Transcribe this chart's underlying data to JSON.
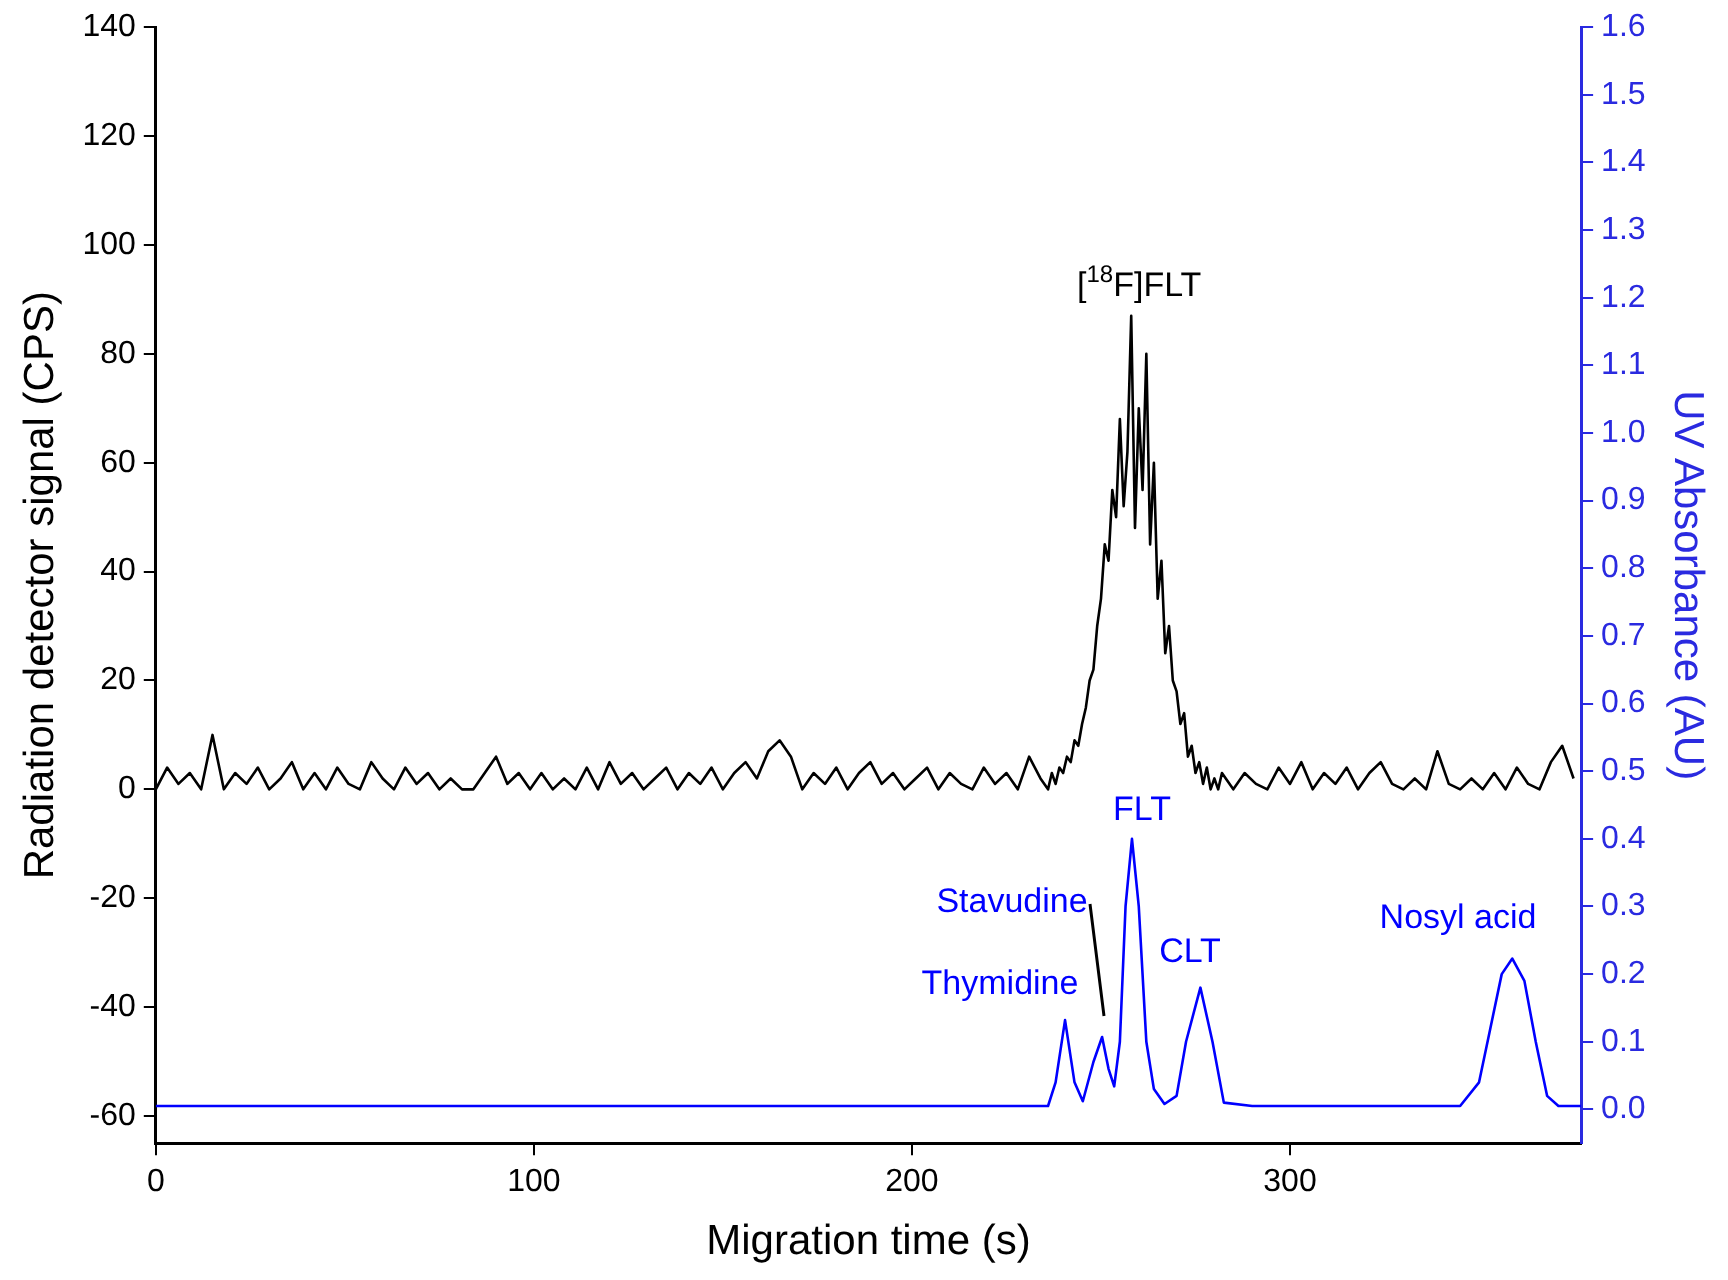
{
  "chart_data": {
    "type": "line",
    "xlabel": "Migration time (s)",
    "ylabel": "Radiation detector signal (CPS)",
    "y2label": "UV Absorbance (AU)",
    "xlim": [
      0,
      377
    ],
    "xticks": [
      0,
      100,
      200,
      300
    ],
    "ylim": [
      -65,
      140
    ],
    "yticks": [
      -60,
      -40,
      -20,
      0,
      20,
      40,
      60,
      80,
      100,
      120,
      140
    ],
    "y2lim": [
      -0.05,
      1.6
    ],
    "y2ticks": [
      {
        "value": 0,
        "label": "0.0"
      },
      0.1,
      0.2,
      0.3,
      0.4,
      0.5,
      0.6,
      0.7,
      0.8,
      0.9,
      {
        "value": 1,
        "label": "1.0"
      },
      1.1,
      1.2,
      1.3,
      1.4,
      1.5,
      1.6
    ],
    "grid": false,
    "legend": false,
    "marker": "none",
    "line_style": "solid",
    "series": [
      {
        "color": "#000000",
        "x": [
          0,
          3,
          6,
          9,
          12,
          15,
          18,
          21,
          24,
          27,
          30,
          33,
          36,
          39,
          42,
          45,
          48,
          51,
          54,
          57,
          60,
          63,
          66,
          69,
          72,
          75,
          78,
          81,
          84,
          87,
          90,
          93,
          96,
          99,
          102,
          105,
          108,
          111,
          114,
          117,
          120,
          123,
          126,
          129,
          132,
          135,
          138,
          141,
          144,
          147,
          150,
          153,
          156,
          159,
          162,
          165,
          168,
          171,
          174,
          177,
          180,
          183,
          186,
          189,
          192,
          195,
          198,
          201,
          204,
          207,
          210,
          213,
          216,
          219,
          222,
          225,
          228,
          231,
          234,
          236,
          237,
          238,
          239,
          240,
          241,
          242,
          243,
          244,
          245,
          246,
          247,
          248,
          249,
          250,
          251,
          252,
          253,
          254,
          255,
          256,
          257,
          258,
          259,
          260,
          261,
          262,
          263,
          264,
          265,
          266,
          267,
          268,
          269,
          270,
          271,
          272,
          273,
          274,
          275,
          276,
          277,
          278,
          279,
          280,
          281,
          282,
          285,
          288,
          291,
          294,
          297,
          300,
          303,
          306,
          309,
          312,
          315,
          318,
          321,
          324,
          327,
          330,
          333,
          336,
          339,
          342,
          345,
          348,
          351,
          354,
          357,
          360,
          363,
          366,
          369,
          372,
          375
        ],
        "values": [
          0,
          4,
          1,
          3,
          0,
          10,
          0,
          3,
          1,
          4,
          0,
          2,
          5,
          0,
          3,
          0,
          4,
          1,
          0,
          5,
          2,
          0,
          4,
          1,
          3,
          0,
          2,
          0,
          0,
          3,
          6,
          1,
          3,
          0,
          3,
          0,
          2,
          0,
          4,
          0,
          5,
          1,
          3,
          0,
          2,
          4,
          0,
          3,
          1,
          4,
          0,
          3,
          5,
          2,
          7,
          9,
          6,
          0,
          3,
          1,
          4,
          0,
          3,
          5,
          1,
          3,
          0,
          2,
          4,
          0,
          3,
          1,
          0,
          4,
          1,
          3,
          0,
          6,
          2,
          0,
          3,
          1,
          4,
          3,
          6,
          5,
          9,
          8,
          12,
          15,
          20,
          22,
          30,
          35,
          45,
          42,
          55,
          50,
          68,
          52,
          62,
          87,
          48,
          70,
          55,
          80,
          45,
          60,
          35,
          42,
          25,
          30,
          20,
          18,
          12,
          14,
          6,
          8,
          3,
          5,
          1,
          4,
          0,
          2,
          0,
          3,
          0,
          3,
          1,
          0,
          4,
          1,
          5,
          0,
          3,
          1,
          4,
          0,
          3,
          5,
          1,
          0,
          2,
          0,
          7,
          1,
          0,
          2,
          0,
          3,
          0,
          4,
          1,
          0,
          5,
          8,
          2
        ]
      },
      {
        "color": "#0000ff",
        "axis": "y2",
        "x": [
          0,
          50,
          100,
          150,
          200,
          236,
          238,
          240.5,
          243,
          245.2,
          248,
          250.3,
          252,
          253.5,
          255,
          256.5,
          258.2,
          260,
          262,
          264,
          266.8,
          270,
          272.5,
          276.3,
          279.5,
          282.5,
          290,
          320,
          345,
          350,
          353,
          356,
          358.8,
          362,
          365,
          368,
          371,
          377
        ],
        "values": [
          0.005,
          0.005,
          0.005,
          0.005,
          0.005,
          0.005,
          0.04,
          0.132,
          0.04,
          0.012,
          0.07,
          0.107,
          0.06,
          0.034,
          0.1,
          0.3,
          0.4,
          0.3,
          0.1,
          0.03,
          0.008,
          0.02,
          0.1,
          0.18,
          0.1,
          0.01,
          0.005,
          0.005,
          0.005,
          0.04,
          0.12,
          0.2,
          0.223,
          0.19,
          0.1,
          0.02,
          0.005,
          0.005
        ]
      }
    ],
    "annotations": [
      {
        "text": "[$^{18}$F]FLT",
        "x": 258,
        "y": 87
      },
      "FLT",
      "Stavudine",
      "Thymidine",
      "CLT",
      "Nosyl acid"
    ]
  }
}
